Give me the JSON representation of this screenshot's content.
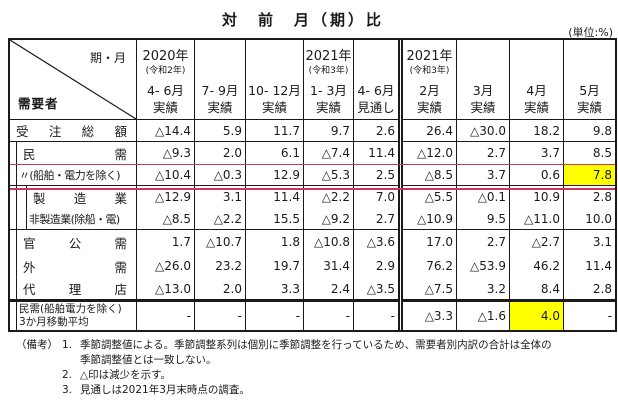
{
  "title": "対　前　月（期）比",
  "unit": "(単位:%)",
  "corner": {
    "top": "期・月",
    "bottom": "需要者"
  },
  "columns": [
    {
      "year": "2020年",
      "era": "(令和2年)",
      "period": "4- 6月",
      "kind": "実績"
    },
    {
      "year": "",
      "era": "",
      "period": "7- 9月",
      "kind": "実績"
    },
    {
      "year": "",
      "era": "",
      "period": "10- 12月",
      "kind": "実績"
    },
    {
      "year": "2021年",
      "era": "(令和3年)",
      "period": "1- 3月",
      "kind": "実績"
    },
    {
      "year": "",
      "era": "",
      "period": "4- 6月",
      "kind": "見通し"
    },
    {
      "year": "2021年",
      "era": "(令和3年)",
      "period": "2月",
      "kind": "実績"
    },
    {
      "year": "",
      "era": "",
      "period": "3月",
      "kind": "実績"
    },
    {
      "year": "",
      "era": "",
      "period": "4月",
      "kind": "実績"
    },
    {
      "year": "",
      "era": "",
      "period": "5月",
      "kind": "実績"
    }
  ],
  "rows": [
    {
      "label": "受注総額",
      "indent": 0,
      "values": [
        "△14.4",
        "5.9",
        "11.7",
        "9.7",
        "2.6",
        "26.4",
        "△30.0",
        "18.2",
        "9.8"
      ]
    },
    {
      "label": "民需",
      "indent": 1,
      "values": [
        "△9.3",
        "2.0",
        "6.1",
        "△7.4",
        "11.4",
        "△12.0",
        "2.7",
        "3.7",
        "8.5"
      ]
    },
    {
      "label": "〃(船舶・電力を除く)",
      "indent": 1,
      "red_box": true,
      "highlight": [
        8
      ],
      "values": [
        "△10.4",
        "△0.3",
        "12.9",
        "△5.3",
        "2.5",
        "△8.5",
        "3.7",
        "0.6",
        "7.8"
      ]
    },
    {
      "label": "製造業",
      "indent": 2,
      "values": [
        "△12.9",
        "3.1",
        "11.4",
        "△2.2",
        "7.0",
        "△5.5",
        "△0.1",
        "10.9",
        "2.8"
      ]
    },
    {
      "label": "非製造業(除船・電)",
      "indent": 2,
      "values": [
        "△8.5",
        "△2.2",
        "15.5",
        "△9.2",
        "2.7",
        "△10.9",
        "9.5",
        "△11.0",
        "10.0"
      ]
    },
    {
      "label": "官公需",
      "indent": 1,
      "values": [
        "1.7",
        "△10.7",
        "1.8",
        "△10.8",
        "△3.6",
        "17.0",
        "2.7",
        "△2.7",
        "3.1"
      ]
    },
    {
      "label": "外需",
      "indent": 1,
      "values": [
        "△26.0",
        "23.2",
        "19.7",
        "31.4",
        "2.9",
        "76.2",
        "△53.9",
        "46.2",
        "11.4"
      ]
    },
    {
      "label": "代理店",
      "indent": 1,
      "values": [
        "△13.0",
        "2.0",
        "3.3",
        "2.4",
        "△3.5",
        "△7.5",
        "3.2",
        "8.4",
        "2.8"
      ]
    }
  ],
  "footer_row": {
    "label_lines": [
      "民需(船舶電力を除く)",
      "3か月移動平均"
    ],
    "values": [
      "-",
      "-",
      "-",
      "-",
      "-",
      "△3.3",
      "△1.6",
      "4.0",
      "-"
    ],
    "highlight": [
      7
    ]
  },
  "notes": {
    "prefix": "（備考）",
    "items": [
      {
        "num": "1.",
        "lines": [
          "季節調整値による。季節調整系列は個別に季節調整を行っているため、需要者別内訳の合計は全体の",
          "季節調整値とは一致しない。"
        ]
      },
      {
        "num": "2.",
        "lines": [
          "△印は減少を示す。"
        ]
      },
      {
        "num": "3.",
        "lines": [
          "見通しは2021年3月末時点の調査。"
        ]
      }
    ]
  },
  "colors": {
    "accent_red": "#c9385a",
    "highlight_yellow": "#ffff00",
    "border": "#1a1a1a"
  }
}
